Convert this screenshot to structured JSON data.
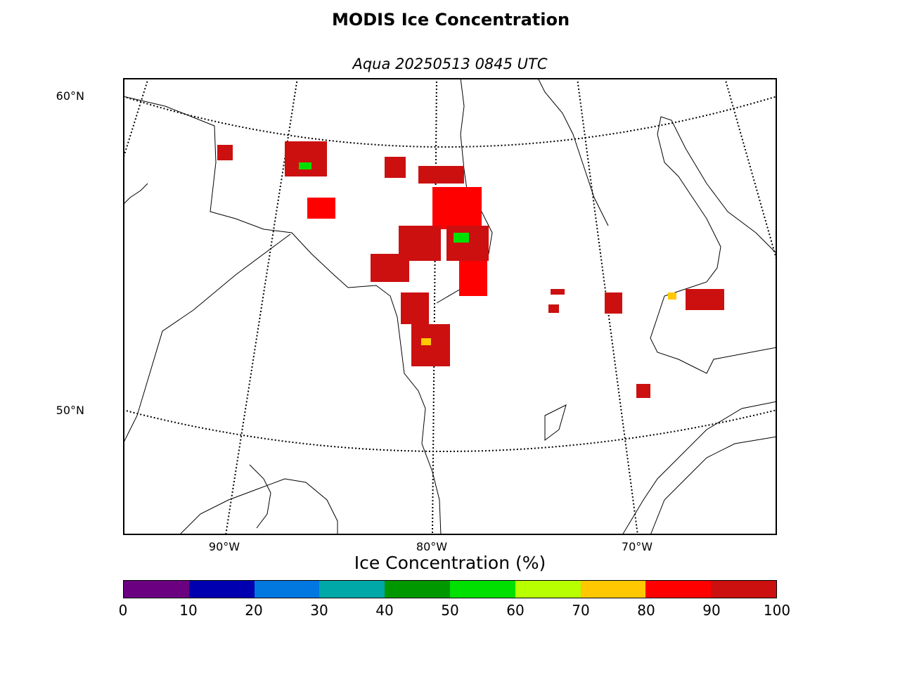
{
  "title": "MODIS Ice Concentration",
  "subtitle": "Aqua 20250513 0845 UTC",
  "map": {
    "lat_labels": [
      "60°N",
      "50°N"
    ],
    "lon_labels": [
      "90°W",
      "80°W",
      "70°W"
    ]
  },
  "colorbar": {
    "label": "Ice Concentration (%)",
    "ticks": [
      "0",
      "10",
      "20",
      "30",
      "40",
      "50",
      "60",
      "70",
      "80",
      "90",
      "100"
    ],
    "colors": [
      "#6b0080",
      "#0000b0",
      "#0078e0",
      "#00a8a8",
      "#009800",
      "#00e000",
      "#b8ff00",
      "#ffc800",
      "#ff0000",
      "#cc1010"
    ]
  }
}
